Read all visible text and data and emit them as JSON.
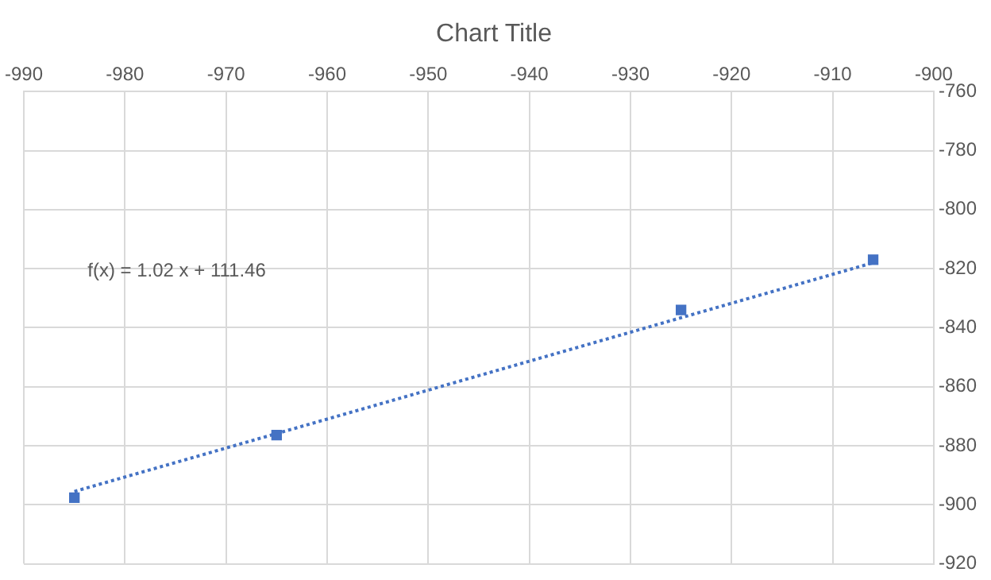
{
  "chart_data": {
    "type": "scatter",
    "title": "Chart Title",
    "series": [
      {
        "type": "scatter",
        "color": "#4472c4",
        "x": [
          -985,
          -965,
          -925,
          -906
        ],
        "values": [
          -897.6,
          -876.4,
          -834,
          -817
        ],
        "marker": "square"
      },
      {
        "type": "line",
        "color": "#4472c4",
        "x": [
          -985,
          -906
        ],
        "values": [
          -895.5,
          -818
        ],
        "line_style": "dotted",
        "marker": "none"
      }
    ],
    "xlim": [
      -990,
      -900
    ],
    "xticks": [
      -990,
      -980,
      -970,
      -960,
      -950,
      -940,
      -930,
      -920,
      -910,
      -900
    ],
    "ylim": [
      -920,
      -760
    ],
    "yticks": [
      -920,
      -900,
      -880,
      -860,
      -840,
      -820,
      -800,
      -780,
      -760
    ],
    "grid": true,
    "legend": false,
    "annotations": [
      "f(x) = 1.02 x + 111.46"
    ]
  }
}
